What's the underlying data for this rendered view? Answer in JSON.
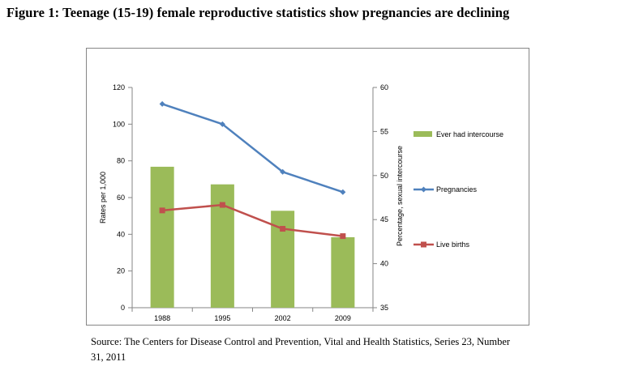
{
  "title": "Figure 1: Teenage (15-19) female reproductive statistics show pregnancies are declining",
  "source": "Source: The Centers for Disease Control and Prevention, Vital and Health Statistics, Series 23, Number 31, 2011",
  "chart_data": {
    "type": "bar+line",
    "title": "",
    "categories": [
      "1988",
      "1995",
      "2002",
      "2009"
    ],
    "xlabel": "",
    "ylabel_left": "Rates per 1,000",
    "ylabel_right": "Percentage, sexual intercourse",
    "ylim_left": [
      0,
      120
    ],
    "yticks_left": [
      0,
      20,
      40,
      60,
      80,
      100,
      120
    ],
    "ylim_right": [
      35,
      60
    ],
    "yticks_right": [
      35,
      40,
      45,
      50,
      55,
      60
    ],
    "grid": false,
    "legend_position": "right",
    "series": [
      {
        "name": "Ever had intercourse",
        "type": "bar",
        "axis": "right",
        "color": "#9BBB59",
        "values": [
          51,
          49,
          46,
          43
        ]
      },
      {
        "name": "Pregnancies",
        "type": "line",
        "axis": "left",
        "color": "#4F81BD",
        "marker": "diamond",
        "values": [
          111,
          100,
          74,
          63
        ]
      },
      {
        "name": "Live births",
        "type": "line",
        "axis": "left",
        "color": "#C0504D",
        "marker": "square",
        "values": [
          53,
          56,
          43,
          39
        ]
      }
    ]
  }
}
